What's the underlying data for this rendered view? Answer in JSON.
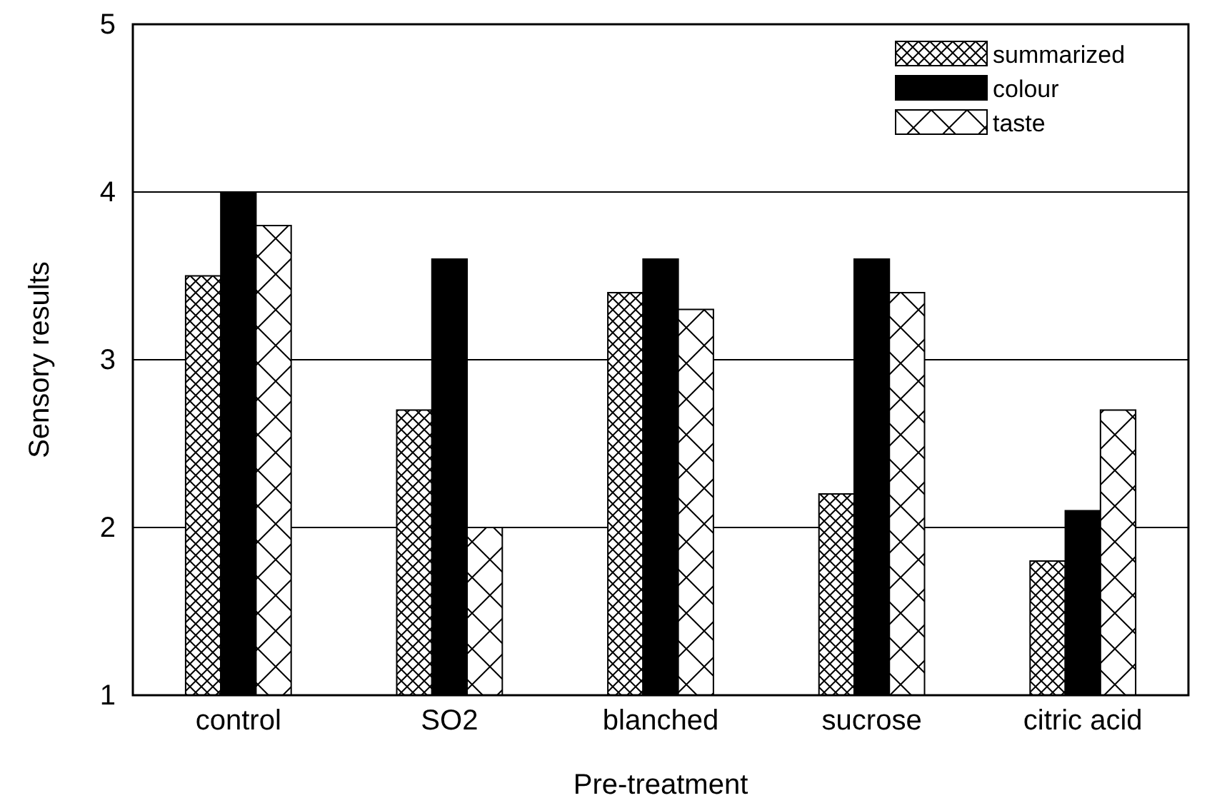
{
  "chart_data": {
    "type": "bar",
    "xlabel": "Pre-treatment",
    "ylabel": "Sensory results",
    "categories": [
      "control",
      "SO2",
      "blanched",
      "sucrose",
      "citric acid"
    ],
    "series": [
      {
        "name": "summarized",
        "color": "#000000",
        "values": [
          3.5,
          2.7,
          3.4,
          2.2,
          1.8
        ]
      },
      {
        "name": "colour",
        "color": "#000000",
        "values": [
          4.0,
          3.6,
          3.6,
          3.6,
          2.1
        ]
      },
      {
        "name": "taste",
        "color": "#000000",
        "values": [
          3.8,
          2.0,
          3.3,
          3.4,
          2.7
        ]
      }
    ],
    "ylim": [
      1,
      5
    ],
    "yticks": [
      1,
      2,
      3,
      4,
      5
    ],
    "grid": "y",
    "legend": "top right"
  }
}
